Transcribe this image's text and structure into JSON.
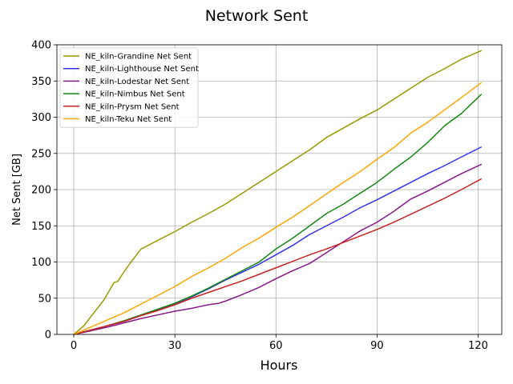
{
  "chart_data": {
    "type": "line",
    "title": "Network Sent",
    "xlabel": "Hours",
    "ylabel": "Net Sent [GB]",
    "xlim": [
      -5,
      127
    ],
    "ylim": [
      0,
      400
    ],
    "xticks": [
      0,
      30,
      60,
      90,
      120
    ],
    "yticks": [
      0,
      50,
      100,
      150,
      200,
      250,
      300,
      350,
      400
    ],
    "grid": true,
    "legend_position": "upper-left",
    "series": [
      {
        "name": "NE_kiln-Grandine Net Sent",
        "color": "#999900",
        "x": [
          0,
          3,
          6,
          9,
          12,
          13,
          15,
          17,
          20,
          25,
          30,
          35,
          40,
          45,
          50,
          55,
          60,
          65,
          70,
          75,
          80,
          85,
          90,
          95,
          100,
          105,
          110,
          115,
          121
        ],
        "y": [
          0,
          12,
          30,
          48,
          72,
          73,
          87,
          100,
          118,
          130,
          142,
          155,
          167,
          180,
          195,
          210,
          225,
          240,
          255,
          272,
          285,
          298,
          310,
          325,
          340,
          355,
          367,
          380,
          392
        ]
      },
      {
        "name": "NE_kiln-Lighthouse Net Sent",
        "color": "#3333ee",
        "x": [
          0,
          5,
          10,
          15,
          20,
          25,
          30,
          35,
          40,
          45,
          50,
          55,
          60,
          65,
          70,
          75,
          80,
          85,
          90,
          95,
          100,
          105,
          110,
          115,
          121
        ],
        "y": [
          0,
          5,
          12,
          18,
          26,
          34,
          42,
          52,
          63,
          75,
          86,
          97,
          110,
          123,
          138,
          150,
          162,
          175,
          186,
          198,
          210,
          222,
          233,
          245,
          259
        ]
      },
      {
        "name": "NE_kiln-Lodestar Net Sent",
        "color": "#881a88",
        "x": [
          0,
          5,
          10,
          15,
          20,
          25,
          30,
          35,
          40,
          43,
          45,
          50,
          55,
          60,
          65,
          70,
          75,
          80,
          85,
          90,
          95,
          100,
          105,
          110,
          115,
          121
        ],
        "y": [
          0,
          5,
          10,
          16,
          22,
          27,
          32,
          36,
          41,
          43,
          46,
          55,
          65,
          77,
          88,
          98,
          113,
          128,
          143,
          155,
          170,
          187,
          198,
          210,
          222,
          235
        ]
      },
      {
        "name": "NE_kiln-Nimbus Net Sent",
        "color": "#118811",
        "x": [
          0,
          5,
          10,
          15,
          20,
          25,
          30,
          35,
          40,
          45,
          50,
          55,
          60,
          65,
          70,
          75,
          80,
          85,
          90,
          95,
          100,
          105,
          110,
          112,
          115,
          121
        ],
        "y": [
          0,
          6,
          12,
          19,
          27,
          35,
          43,
          53,
          64,
          76,
          88,
          100,
          118,
          133,
          150,
          167,
          180,
          195,
          210,
          228,
          245,
          265,
          288,
          295,
          305,
          332
        ]
      },
      {
        "name": "NE_kiln-Prysm Net Sent",
        "color": "#cc2222",
        "x": [
          0,
          5,
          10,
          15,
          20,
          25,
          30,
          35,
          40,
          45,
          50,
          55,
          60,
          65,
          70,
          75,
          80,
          85,
          90,
          95,
          100,
          105,
          110,
          115,
          121
        ],
        "y": [
          0,
          6,
          12,
          18,
          26,
          33,
          41,
          50,
          58,
          66,
          74,
          83,
          92,
          101,
          110,
          118,
          127,
          136,
          145,
          155,
          166,
          177,
          188,
          200,
          215
        ]
      },
      {
        "name": "NE_kiln-Teku Net Sent",
        "color": "#ffa500",
        "x": [
          0,
          5,
          10,
          15,
          20,
          25,
          30,
          35,
          40,
          45,
          50,
          55,
          60,
          65,
          70,
          75,
          80,
          85,
          90,
          95,
          100,
          105,
          110,
          115,
          121
        ],
        "y": [
          0,
          10,
          20,
          30,
          42,
          54,
          66,
          80,
          92,
          105,
          120,
          133,
          148,
          162,
          178,
          194,
          210,
          225,
          242,
          258,
          278,
          293,
          310,
          327,
          348
        ]
      }
    ]
  }
}
